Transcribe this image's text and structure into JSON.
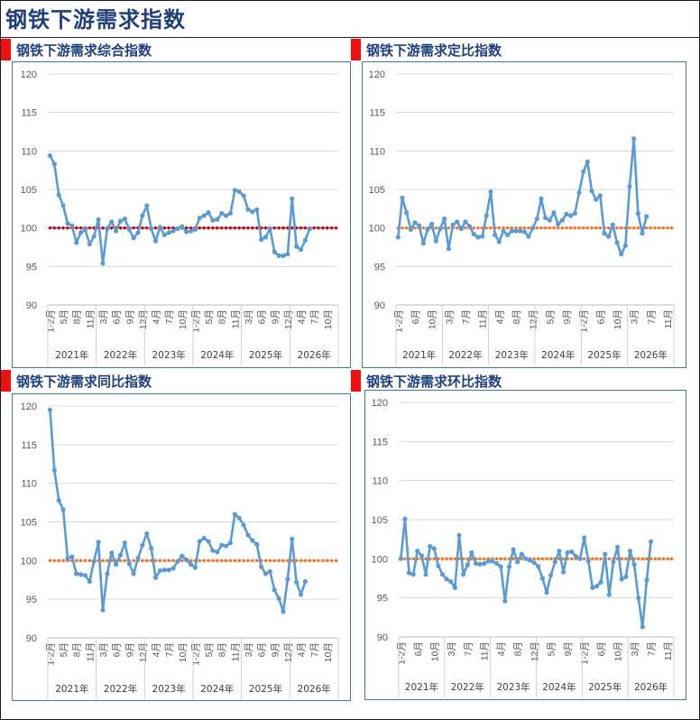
{
  "page": {
    "title": "钢铁下游需求指数"
  },
  "colors": {
    "series": "#5b9bd5",
    "baseline_diamond": "#c00000",
    "baseline_dot": "#ed7d31",
    "grid": "#d9d9d9",
    "marker": "#ee1111",
    "title": "#1f3f7a",
    "border": "#3b7ea1"
  },
  "charts": [
    {
      "title": "钢铁下游需求综合指数"
    },
    {
      "title": "钢铁下游需求定比指数"
    },
    {
      "title": "钢铁下游需求同比指数"
    },
    {
      "title": "钢铁下游需求环比指数"
    }
  ],
  "chart_data": [
    {
      "type": "line",
      "title": "钢铁下游需求综合指数",
      "ylim": [
        90,
        120
      ],
      "yticks": [
        90,
        95,
        100,
        105,
        110,
        115,
        120
      ],
      "grid": true,
      "x_tick_labels": [
        "1-2月",
        "5月",
        "8月",
        "11月",
        "3月",
        "6月",
        "9月",
        "12月",
        "4月",
        "7月",
        "10月",
        "1-2月",
        "5月",
        "8月",
        "11月",
        "3月",
        "6月",
        "9月",
        "12月",
        "4月",
        "7月",
        "10月"
      ],
      "year_groups": [
        {
          "label": "2021年",
          "months": 11
        },
        {
          "label": "2022年",
          "months": 11
        },
        {
          "label": "2023年",
          "months": 11
        },
        {
          "label": "2024年",
          "months": 11
        },
        {
          "label": "2025年",
          "months": 11
        },
        {
          "label": "2026年",
          "months": 11
        }
      ],
      "series": [
        {
          "values": [
            109.4,
            108.3,
            104.3,
            102.9,
            100.6,
            100.3,
            98.1,
            99.4,
            99.8,
            97.9,
            98.9,
            101.1,
            95.4,
            99.9,
            100.8,
            99.6,
            100.9,
            101.2,
            99.8,
            98.7,
            99.4,
            101.6,
            102.9,
            99.9,
            98.3,
            100.1,
            99.1,
            99.4,
            99.6,
            99.9,
            100.2,
            99.5,
            99.6,
            99.8,
            101.3,
            101.6,
            102.0,
            101.0,
            101.1,
            101.9,
            101.6,
            101.9,
            104.9,
            104.7,
            104.2,
            102.4,
            102.1,
            102.4,
            98.5,
            98.8,
            99.9,
            96.9,
            96.4,
            96.4,
            96.6,
            103.8,
            97.6,
            97.2,
            98.4,
            99.9,
            null,
            null,
            null,
            null,
            null,
            null
          ]
        },
        {
          "values": [
            100,
            100,
            100,
            100,
            100,
            100,
            100,
            100,
            100,
            100,
            100,
            100,
            100,
            100,
            100,
            100,
            100,
            100,
            100,
            100,
            100,
            100,
            100,
            100,
            100,
            100,
            100,
            100,
            100,
            100,
            100,
            100,
            100,
            100,
            100,
            100,
            100,
            100,
            100,
            100,
            100,
            100,
            100,
            100,
            100,
            100,
            100,
            100,
            100,
            100,
            100,
            100,
            100,
            100,
            100,
            100,
            100,
            100,
            100,
            100,
            100,
            100,
            100,
            100,
            100,
            100
          ]
        }
      ]
    },
    {
      "type": "line",
      "title": "钢铁下游需求定比指数",
      "ylim": [
        90,
        120
      ],
      "yticks": [
        90,
        95,
        100,
        105,
        110,
        115,
        120
      ],
      "grid": true,
      "x_tick_labels": [
        "1-2月",
        "6月",
        "10月",
        "3月",
        "7月",
        "11月",
        "4月",
        "8月",
        "12月",
        "5月",
        "9月",
        "1-2月",
        "6月",
        "10月",
        "3月",
        "7月",
        "11月"
      ],
      "year_groups": [
        {
          "label": "2021年",
          "months": 11
        },
        {
          "label": "2022年",
          "months": 11
        },
        {
          "label": "2023年",
          "months": 11
        },
        {
          "label": "2024年",
          "months": 11
        },
        {
          "label": "2025年",
          "months": 11
        },
        {
          "label": "2026年",
          "months": 11
        }
      ],
      "series": [
        {
          "values": [
            98.8,
            103.9,
            102.0,
            99.8,
            100.7,
            100.3,
            98.0,
            99.8,
            100.5,
            98.3,
            99.9,
            101.2,
            97.3,
            100.4,
            100.8,
            99.9,
            100.8,
            100.2,
            99.2,
            98.8,
            98.9,
            101.6,
            104.7,
            99.1,
            98.2,
            99.6,
            99.1,
            99.6,
            99.6,
            99.6,
            99.5,
            98.9,
            100.0,
            101.2,
            103.8,
            101.3,
            101.0,
            102.0,
            100.5,
            101.0,
            101.8,
            101.6,
            101.9,
            104.6,
            107.3,
            108.6,
            104.8,
            103.7,
            104.2,
            99.3,
            98.9,
            100.4,
            98.1,
            96.6,
            97.7,
            105.4,
            111.6,
            101.9,
            99.3,
            101.5,
            null,
            null,
            null,
            null,
            null,
            null
          ]
        },
        {
          "values": [
            100,
            100,
            100,
            100,
            100,
            100,
            100,
            100,
            100,
            100,
            100,
            100,
            100,
            100,
            100,
            100,
            100,
            100,
            100,
            100,
            100,
            100,
            100,
            100,
            100,
            100,
            100,
            100,
            100,
            100,
            100,
            100,
            100,
            100,
            100,
            100,
            100,
            100,
            100,
            100,
            100,
            100,
            100,
            100,
            100,
            100,
            100,
            100,
            100,
            100,
            100,
            100,
            100,
            100,
            100,
            100,
            100,
            100,
            100,
            100,
            100,
            100,
            100,
            100,
            100,
            100
          ]
        }
      ]
    },
    {
      "type": "line",
      "title": "钢铁下游需求同比指数",
      "ylim": [
        90,
        120
      ],
      "yticks": [
        90,
        95,
        100,
        105,
        110,
        115,
        120
      ],
      "grid": true,
      "x_tick_labels": [
        "1-2月",
        "5月",
        "8月",
        "11月",
        "3月",
        "6月",
        "9月",
        "12月",
        "4月",
        "7月",
        "10月",
        "1-2月",
        "5月",
        "8月",
        "11月",
        "3月",
        "6月",
        "9月",
        "12月",
        "4月",
        "7月",
        "10月"
      ],
      "year_groups": [
        {
          "label": "2021年",
          "months": 11
        },
        {
          "label": "2022年",
          "months": 11
        },
        {
          "label": "2023年",
          "months": 11
        },
        {
          "label": "2024年",
          "months": 11
        },
        {
          "label": "2025年",
          "months": 11
        },
        {
          "label": "2026年",
          "months": 11
        }
      ],
      "series": [
        {
          "values": [
            119.5,
            111.7,
            107.8,
            106.6,
            100.3,
            100.5,
            98.3,
            98.2,
            98.1,
            97.3,
            99.9,
            102.4,
            93.6,
            98.3,
            101.0,
            99.5,
            100.7,
            102.3,
            99.6,
            98.3,
            100.3,
            102.0,
            103.5,
            101.6,
            97.8,
            98.7,
            98.8,
            98.8,
            99.0,
            99.9,
            100.6,
            100.1,
            99.5,
            99.1,
            102.5,
            102.9,
            102.5,
            101.3,
            101.1,
            102.0,
            101.9,
            102.3,
            106.0,
            105.5,
            104.6,
            103.3,
            102.6,
            102.1,
            99.2,
            98.3,
            98.6,
            96.2,
            95.1,
            93.4,
            97.6,
            102.8,
            97.2,
            95.6,
            97.3,
            null,
            null,
            null,
            null,
            null,
            null,
            null
          ]
        },
        {
          "values": [
            100,
            100,
            100,
            100,
            100,
            100,
            100,
            100,
            100,
            100,
            100,
            100,
            100,
            100,
            100,
            100,
            100,
            100,
            100,
            100,
            100,
            100,
            100,
            100,
            100,
            100,
            100,
            100,
            100,
            100,
            100,
            100,
            100,
            100,
            100,
            100,
            100,
            100,
            100,
            100,
            100,
            100,
            100,
            100,
            100,
            100,
            100,
            100,
            100,
            100,
            100,
            100,
            100,
            100,
            100,
            100,
            100,
            100,
            100,
            100,
            100,
            100,
            100,
            100,
            100,
            100
          ]
        }
      ]
    },
    {
      "type": "line",
      "title": "钢铁下游需求环比指数",
      "ylim": [
        90,
        120
      ],
      "yticks": [
        90,
        95,
        100,
        105,
        110,
        115,
        120
      ],
      "grid": true,
      "x_tick_labels": [
        "1-2月",
        "6月",
        "10月",
        "3月",
        "7月",
        "11月",
        "4月",
        "8月",
        "12月",
        "5月",
        "9月",
        "1-2月",
        "6月",
        "10月",
        "3月",
        "7月",
        "11月"
      ],
      "year_groups": [
        {
          "label": "2021年",
          "months": 11
        },
        {
          "label": "2022年",
          "months": 11
        },
        {
          "label": "2023年",
          "months": 11
        },
        {
          "label": "2024年",
          "months": 11
        },
        {
          "label": "2025年",
          "months": 11
        },
        {
          "label": "2026年",
          "months": 11
        }
      ],
      "series": [
        {
          "values": [
            100.0,
            105.1,
            98.2,
            98.0,
            101.0,
            100.4,
            98.0,
            101.6,
            101.3,
            99.1,
            98.0,
            97.4,
            97.1,
            96.3,
            103.0,
            98.0,
            99.2,
            100.8,
            99.4,
            99.3,
            99.4,
            99.7,
            99.7,
            99.4,
            99.0,
            94.6,
            99.0,
            101.2,
            99.6,
            100.6,
            100.0,
            99.8,
            99.5,
            99.0,
            97.5,
            95.7,
            97.9,
            99.6,
            101.0,
            98.3,
            100.8,
            100.9,
            100.3,
            100.0,
            102.7,
            99.7,
            96.3,
            96.5,
            97.0,
            100.6,
            95.4,
            99.6,
            101.5,
            97.4,
            97.7,
            101.0,
            99.3,
            95.0,
            91.3,
            97.3,
            102.2,
            null,
            null,
            null,
            null,
            null
          ]
        },
        {
          "values": [
            100,
            100,
            100,
            100,
            100,
            100,
            100,
            100,
            100,
            100,
            100,
            100,
            100,
            100,
            100,
            100,
            100,
            100,
            100,
            100,
            100,
            100,
            100,
            100,
            100,
            100,
            100,
            100,
            100,
            100,
            100,
            100,
            100,
            100,
            100,
            100,
            100,
            100,
            100,
            100,
            100,
            100,
            100,
            100,
            100,
            100,
            100,
            100,
            100,
            100,
            100,
            100,
            100,
            100,
            100,
            100,
            100,
            100,
            100,
            100,
            100,
            100,
            100,
            100,
            100,
            100
          ]
        }
      ]
    }
  ]
}
